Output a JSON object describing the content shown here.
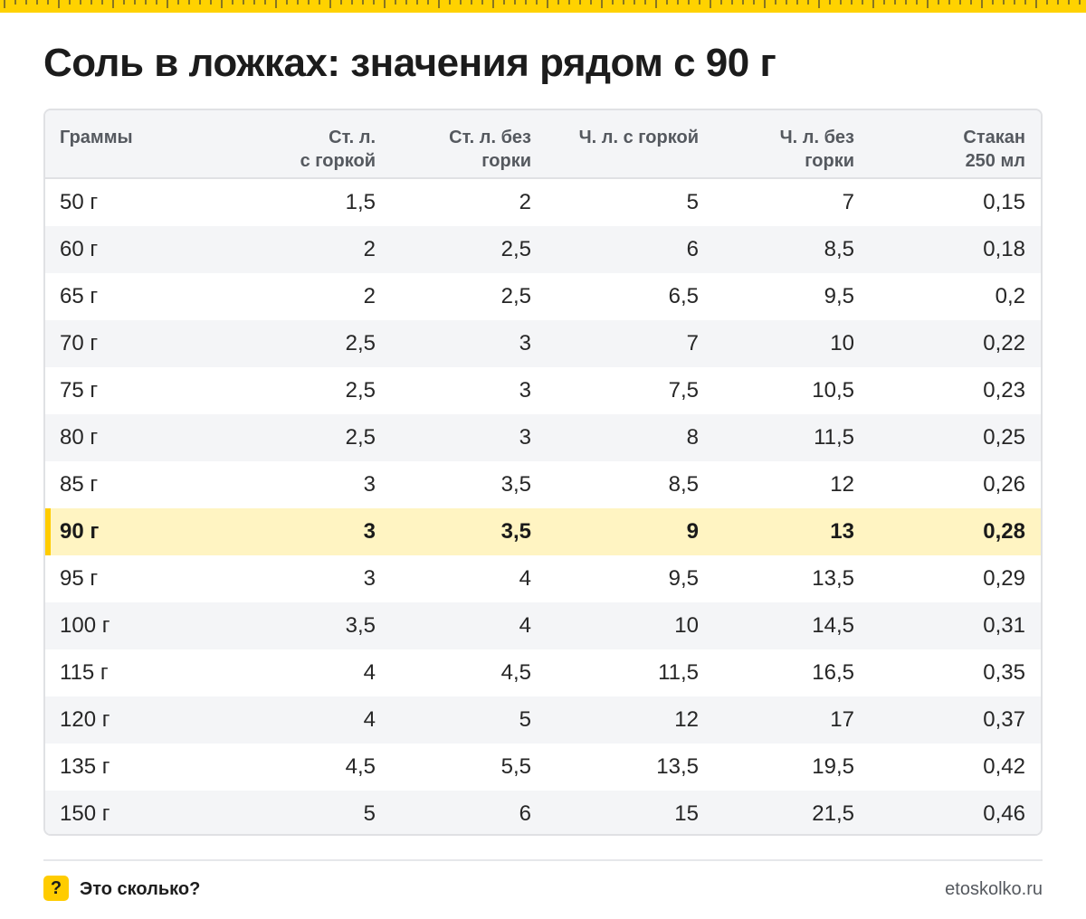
{
  "title": "Соль в ложках: значения рядом с 90 г",
  "table": {
    "headers": [
      "Граммы",
      "Ст. л.\nс горкой",
      "Ст. л. без\nгорки",
      "Ч. л. с горкой",
      "Ч. л. без\nгорки",
      "Стакан\n250 мл"
    ],
    "highlight_row": 7,
    "rows": [
      [
        "50 г",
        "1,5",
        "2",
        "5",
        "7",
        "0,15"
      ],
      [
        "60 г",
        "2",
        "2,5",
        "6",
        "8,5",
        "0,18"
      ],
      [
        "65 г",
        "2",
        "2,5",
        "6,5",
        "9,5",
        "0,2"
      ],
      [
        "70 г",
        "2,5",
        "3",
        "7",
        "10",
        "0,22"
      ],
      [
        "75 г",
        "2,5",
        "3",
        "7,5",
        "10,5",
        "0,23"
      ],
      [
        "80 г",
        "2,5",
        "3",
        "8",
        "11,5",
        "0,25"
      ],
      [
        "85 г",
        "3",
        "3,5",
        "8,5",
        "12",
        "0,26"
      ],
      [
        "90 г",
        "3",
        "3,5",
        "9",
        "13",
        "0,28"
      ],
      [
        "95 г",
        "3",
        "4",
        "9,5",
        "13,5",
        "0,29"
      ],
      [
        "100 г",
        "3,5",
        "4",
        "10",
        "14,5",
        "0,31"
      ],
      [
        "115 г",
        "4",
        "4,5",
        "11,5",
        "16,5",
        "0,35"
      ],
      [
        "120 г",
        "4",
        "5",
        "12",
        "17",
        "0,37"
      ],
      [
        "135 г",
        "4,5",
        "5,5",
        "13,5",
        "19,5",
        "0,42"
      ],
      [
        "150 г",
        "5",
        "6",
        "15",
        "21,5",
        "0,46"
      ]
    ]
  },
  "footer": {
    "logo_glyph": "?",
    "brand": "Это сколько?",
    "url": "etoskolko.ru"
  },
  "colors": {
    "accent": "#ffcc00",
    "highlight": "#fff4c2",
    "ruler": "#ffd200"
  }
}
